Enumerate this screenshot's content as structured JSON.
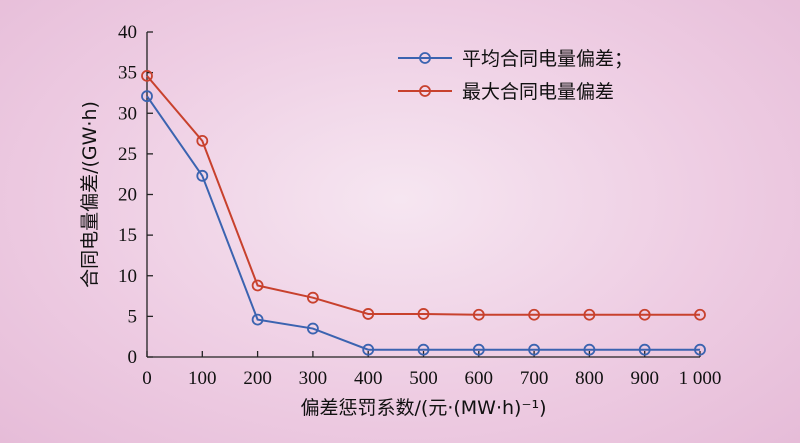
{
  "chart_data": {
    "type": "line",
    "x": [
      0,
      100,
      200,
      300,
      400,
      500,
      600,
      700,
      800,
      900,
      1000
    ],
    "x_tick_labels": [
      "0",
      "100",
      "200",
      "300",
      "400",
      "500",
      "600",
      "700",
      "800",
      "900",
      "1 000"
    ],
    "xlim": [
      0,
      1000
    ],
    "ylim": [
      0,
      40
    ],
    "y_ticks": [
      0,
      5,
      10,
      15,
      20,
      25,
      30,
      35,
      40
    ],
    "xlabel": "偏差惩罚系数/(元·(MW·h)⁻¹)",
    "ylabel": "合同电量偏差/(GW·h)",
    "legend_position": "top-right",
    "grid": false,
    "series": [
      {
        "name": "平均合同电量偏差；",
        "color": "#3b63b0",
        "values": [
          32.1,
          22.3,
          4.6,
          3.5,
          0.9,
          0.9,
          0.9,
          0.9,
          0.9,
          0.9,
          0.9
        ]
      },
      {
        "name": "最大合同电量偏差",
        "color": "#c8412d",
        "values": [
          34.6,
          26.6,
          8.8,
          7.3,
          5.3,
          5.3,
          5.2,
          5.2,
          5.2,
          5.2,
          5.2
        ]
      }
    ]
  }
}
